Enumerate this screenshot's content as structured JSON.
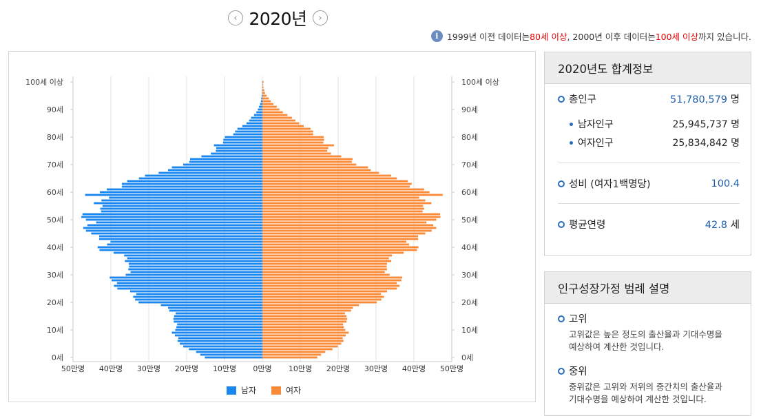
{
  "header": {
    "year_title": "2020년",
    "prev_icon": "chevron-left-icon",
    "next_icon": "chevron-right-icon"
  },
  "notice": {
    "icon": "info-icon",
    "part1": "1999년 이전 데이터는",
    "red1": "80세 이상",
    "part2": ", 2000년 이후 데이터는 ",
    "red2": "100세 이상",
    "part3": "까지 있습니다."
  },
  "summary": {
    "title": "2020년도 합계정보",
    "total_label": "총인구",
    "total_value": "51,780,579",
    "total_unit": "명",
    "male_label": "남자인구",
    "male_value": "25,945,737",
    "male_unit": "명",
    "female_label": "여자인구",
    "female_value": "25,834,842",
    "female_unit": "명",
    "ratio_label": "성비 (여자1백명당)",
    "ratio_value": "100.4",
    "age_label": "평균연령",
    "age_value": "42.8",
    "age_unit": "세"
  },
  "legend_panel": {
    "title": "인구성장가정 범례 설명",
    "items": [
      {
        "name": "고위",
        "desc1": "고위값은 높은 정도의 출산율과 기대수명을",
        "desc2": "예상하여 계산한 것입니다."
      },
      {
        "name": "중위",
        "desc1": "중위값은 고위와 저위의 중간치의 출산율과",
        "desc2": "기대수명을 예상하여 계산한 것입니다."
      }
    ]
  },
  "chart_data": {
    "type": "bar",
    "orientation": "horizontal-pyramid",
    "unit": "만명",
    "xlim": [
      0,
      50
    ],
    "x_ticks": [
      "50만명",
      "40만명",
      "30만명",
      "20만명",
      "10만명",
      "0만명",
      "10만명",
      "20만명",
      "30만명",
      "40만명",
      "50만명"
    ],
    "y_ticks": [
      "100세 이상",
      "90세",
      "80세",
      "70세",
      "60세",
      "50세",
      "40세",
      "30세",
      "20세",
      "10세",
      "0세"
    ],
    "ages": [
      0,
      1,
      2,
      3,
      4,
      5,
      6,
      7,
      8,
      9,
      10,
      11,
      12,
      13,
      14,
      15,
      16,
      17,
      18,
      19,
      20,
      21,
      22,
      23,
      24,
      25,
      26,
      27,
      28,
      29,
      30,
      31,
      32,
      33,
      34,
      35,
      36,
      37,
      38,
      39,
      40,
      41,
      42,
      43,
      44,
      45,
      46,
      47,
      48,
      49,
      50,
      51,
      52,
      53,
      54,
      55,
      56,
      57,
      58,
      59,
      60,
      61,
      62,
      63,
      64,
      65,
      66,
      67,
      68,
      69,
      70,
      71,
      72,
      73,
      74,
      75,
      76,
      77,
      78,
      79,
      80,
      81,
      82,
      83,
      84,
      85,
      86,
      87,
      88,
      89,
      90,
      91,
      92,
      93,
      94,
      95,
      96,
      97,
      98,
      99,
      100
    ],
    "colors": {
      "male": "#1a86f0",
      "female": "#f98a37"
    },
    "series": [
      {
        "name": "남자",
        "values": [
          15.2,
          16.4,
          17.5,
          19.4,
          20.9,
          21.8,
          22.4,
          22.2,
          23.1,
          23.9,
          23.0,
          22.7,
          22.5,
          23.4,
          23.5,
          23.3,
          22.9,
          24.6,
          24.9,
          26.8,
          32.7,
          33.6,
          34.1,
          33.3,
          34.9,
          38.3,
          39.2,
          38.4,
          39.8,
          40.3,
          36.1,
          34.8,
          35.4,
          35.2,
          35.3,
          36.3,
          35.7,
          36.5,
          39.3,
          43.0,
          43.5,
          41.0,
          40.1,
          43.1,
          43.1,
          45.2,
          46.6,
          47.3,
          46.2,
          43.9,
          46.6,
          47.8,
          47.5,
          42.6,
          42.8,
          42.2,
          44.5,
          42.5,
          40.5,
          46.8,
          42.9,
          41.1,
          37.1,
          37.1,
          35.7,
          32.6,
          31.0,
          27.4,
          24.9,
          23.9,
          20.9,
          19.3,
          19.1,
          16.1,
          13.6,
          12.3,
          12.2,
          12.8,
          10.4,
          10.3,
          9.9,
          7.7,
          7.2,
          6.6,
          5.3,
          4.2,
          3.5,
          3.0,
          2.2,
          1.6,
          1.2,
          0.9,
          0.6,
          0.4,
          0.3,
          0.2,
          0.1,
          0.1,
          0.05,
          0.03,
          0.05
        ]
      },
      {
        "name": "여자",
        "values": [
          14.5,
          15.5,
          16.6,
          18.5,
          19.9,
          20.8,
          21.4,
          21.2,
          22.0,
          22.8,
          21.9,
          21.5,
          21.3,
          22.2,
          22.4,
          22.2,
          21.8,
          23.4,
          23.9,
          25.5,
          30.2,
          31.4,
          32.1,
          31.3,
          32.9,
          35.5,
          36.2,
          35.5,
          36.7,
          36.9,
          33.6,
          32.3,
          32.9,
          32.8,
          32.9,
          34.0,
          33.4,
          34.2,
          37.3,
          40.8,
          41.2,
          38.7,
          38.0,
          41.1,
          41.1,
          43.0,
          44.7,
          45.9,
          45.1,
          43.3,
          45.9,
          47.0,
          46.9,
          42.3,
          42.7,
          42.4,
          44.6,
          43.0,
          41.4,
          47.6,
          44.1,
          42.7,
          38.9,
          39.4,
          38.4,
          35.5,
          34.0,
          30.8,
          28.6,
          27.9,
          24.8,
          23.6,
          23.8,
          20.8,
          18.1,
          17.1,
          17.4,
          18.9,
          16.1,
          16.3,
          16.2,
          13.4,
          13.4,
          12.7,
          10.9,
          9.7,
          8.7,
          7.8,
          6.6,
          5.4,
          4.5,
          3.8,
          2.9,
          2.2,
          1.7,
          1.1,
          0.7,
          0.5,
          0.3,
          0.2,
          0.3
        ]
      }
    ],
    "legend_position": "bottom",
    "grid": true
  }
}
